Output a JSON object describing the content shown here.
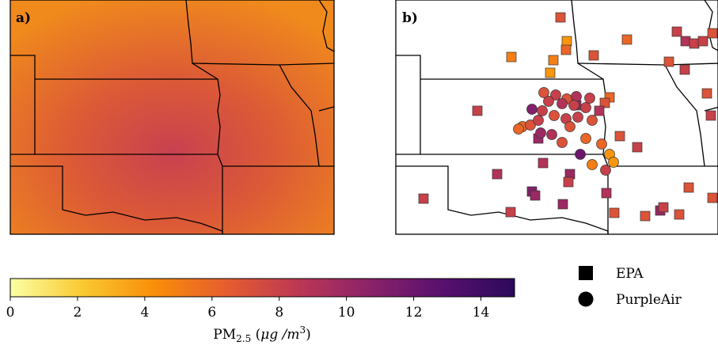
{
  "panels": [
    {
      "label": "a)"
    },
    {
      "label": "b)"
    }
  ],
  "colorbar": {
    "label": [
      "PM",
      "2.5",
      " (",
      "μg /m",
      "3",
      ")"
    ],
    "lim": [
      0,
      15
    ],
    "ticks": [
      0,
      2,
      4,
      6,
      8,
      10,
      12,
      14
    ],
    "colors": [
      "#fcffa4",
      "#f9c932",
      "#f98e09",
      "#e65d2f",
      "#bc3754",
      "#8a226a",
      "#57106e",
      "#2d0a5b"
    ]
  },
  "legend": [
    {
      "name": "EPA",
      "marker": "square"
    },
    {
      "name": "PurpleAir",
      "marker": "circle"
    }
  ],
  "stations": {
    "epa": [
      7,
      5,
      5,
      4,
      6,
      4,
      6,
      7,
      8,
      9,
      8,
      8,
      7,
      7,
      8,
      8,
      6,
      7,
      9,
      10,
      7,
      8,
      10,
      9,
      9,
      10,
      8,
      11,
      10,
      10,
      9,
      8,
      8,
      7,
      7,
      10,
      8,
      7,
      7,
      7,
      8,
      7
    ],
    "purpleair": [
      7,
      8,
      7,
      9,
      8,
      8,
      9,
      8,
      8,
      11,
      8,
      7,
      8,
      8,
      7,
      6,
      7,
      10,
      9,
      7,
      6,
      6,
      12,
      5,
      4,
      4,
      8,
      6,
      8,
      7
    ]
  }
}
